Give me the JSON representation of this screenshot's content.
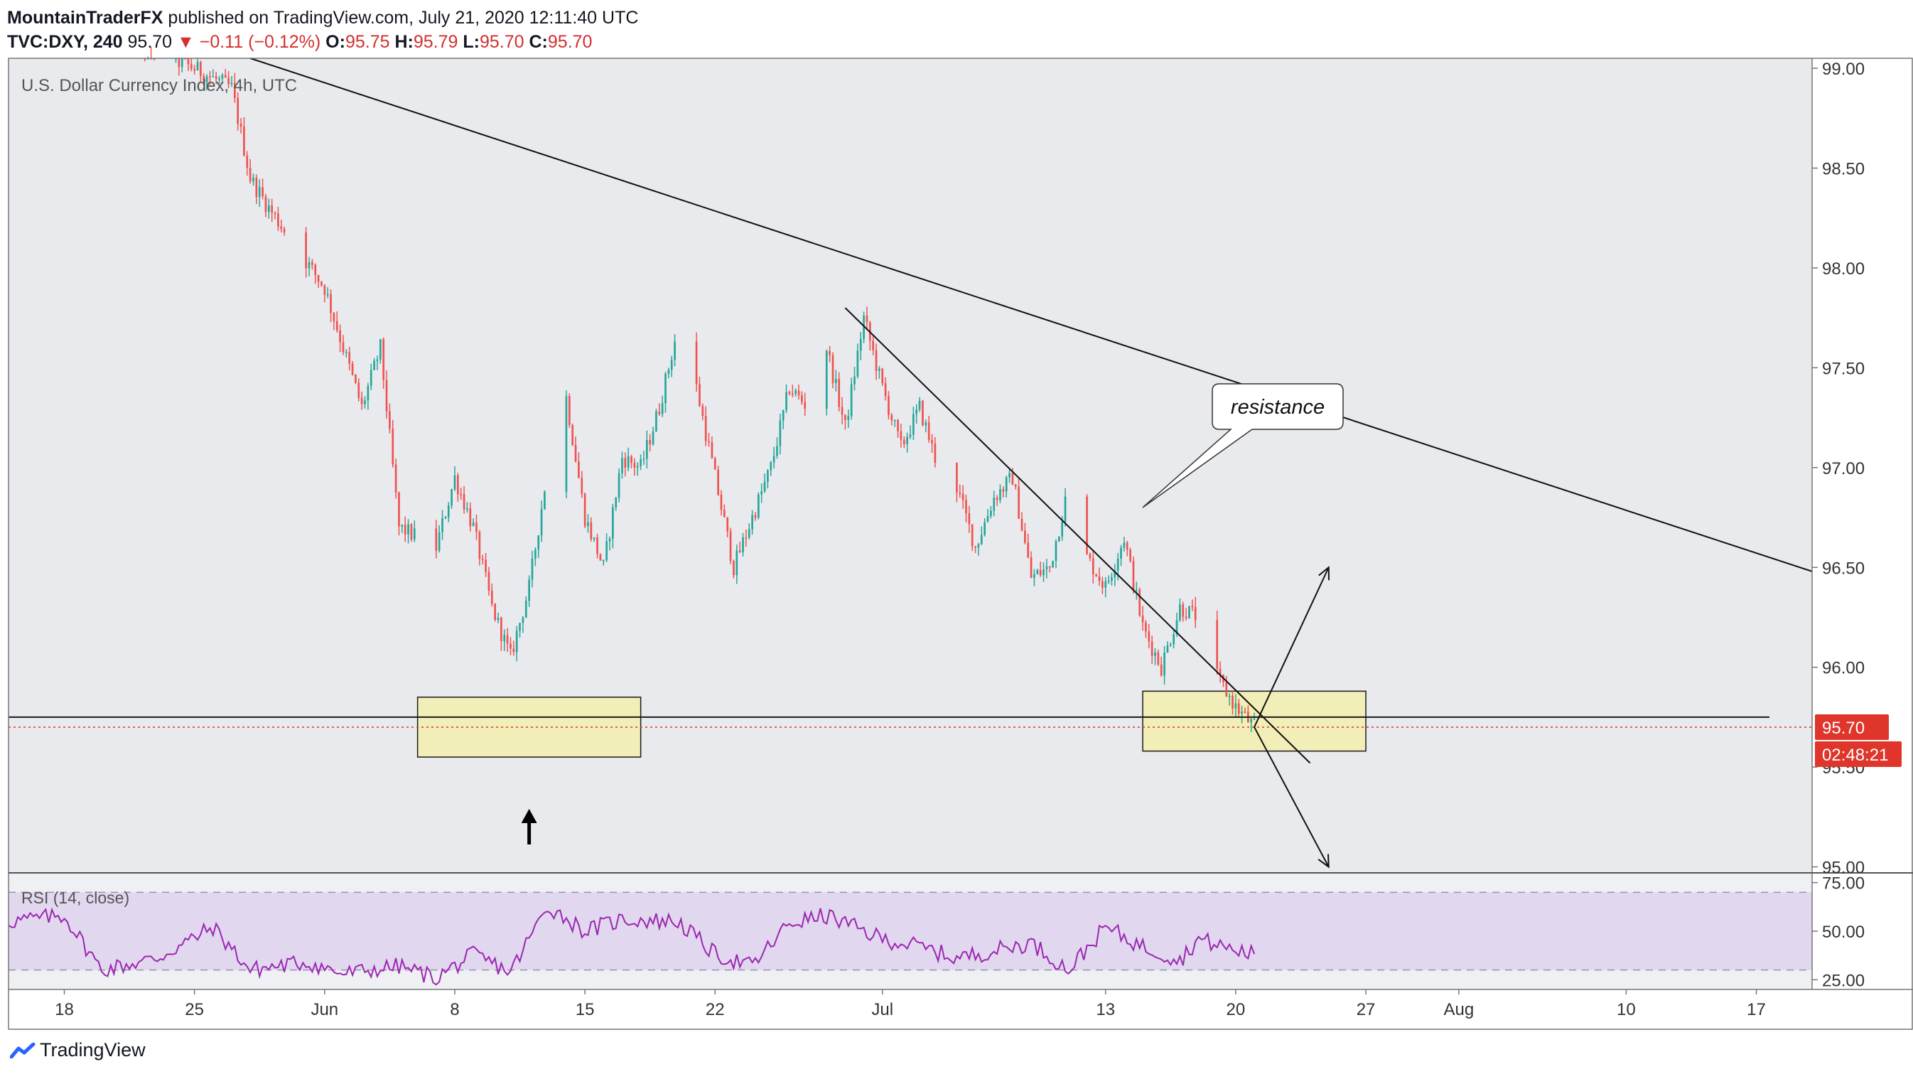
{
  "header": {
    "author": "MountainTraderFX",
    "published": "published on TradingView.com, July 21, 2020 12:11:40 UTC"
  },
  "ohlc": {
    "symbol": "TVC:DXY, 240",
    "last": "95.70",
    "change": "▼ −0.11 (−0.12%)",
    "o_label": "O:",
    "o": "95.75",
    "h_label": "H:",
    "h": "95.79",
    "l_label": "L:",
    "l": "95.70",
    "c_label": "C:",
    "c": "95.70"
  },
  "legend": "U.S. Dollar Currency Index, 4h, UTC",
  "annotation": "resistance",
  "price_tag": "95.70",
  "countdown": "02:48:21",
  "rsi_label": "RSI (14, close)",
  "footer": "TradingView",
  "colors": {
    "up": "#26a69a",
    "down": "#ef5350",
    "background": "#e9eaee",
    "rsi_band": "#e1d7ef",
    "rsi_line": "#9c27b0",
    "zone_fill": "#f3eeb0",
    "price_tag": "#e0352b"
  },
  "chart_data": [
    {
      "type": "candlestick",
      "y_axis_ticks": [
        "99.00",
        "98.50",
        "98.00",
        "97.50",
        "97.00",
        "96.50",
        "96.00",
        "95.50",
        "95.00"
      ],
      "x_axis_ticks": [
        "18",
        "25",
        "Jun",
        "8",
        "15",
        "22",
        "Jul",
        "13",
        "20",
        "27",
        "Aug",
        "10",
        "17"
      ],
      "ylim": [
        94.97,
        99.05
      ],
      "xlim": [
        "2020-05-15",
        "2020-08-20"
      ],
      "close_path": [
        [
          "2020-05-21",
          99.15
        ],
        [
          "2020-05-25",
          99.0
        ],
        [
          "2020-05-27",
          98.9
        ],
        [
          "2020-05-28",
          98.45
        ],
        [
          "2020-05-29",
          98.3
        ],
        [
          "2020-06-01",
          97.9
        ],
        [
          "2020-06-02",
          97.6
        ],
        [
          "2020-06-03",
          97.3
        ],
        [
          "2020-06-04",
          97.6
        ],
        [
          "2020-06-05",
          96.7
        ],
        [
          "2020-06-07",
          96.6
        ],
        [
          "2020-06-08",
          96.95
        ],
        [
          "2020-06-09",
          96.7
        ],
        [
          "2020-06-10",
          96.3
        ],
        [
          "2020-06-11",
          96.05
        ],
        [
          "2020-06-12",
          96.4
        ],
        [
          "2020-06-13",
          97.0
        ],
        [
          "2020-06-14",
          97.35
        ],
        [
          "2020-06-15",
          96.75
        ],
        [
          "2020-06-16",
          96.5
        ],
        [
          "2020-06-17",
          97.05
        ],
        [
          "2020-06-18",
          97.0
        ],
        [
          "2020-06-19",
          97.3
        ],
        [
          "2020-06-20",
          97.7
        ],
        [
          "2020-06-21",
          97.4
        ],
        [
          "2020-06-22",
          96.95
        ],
        [
          "2020-06-23",
          96.5
        ],
        [
          "2020-06-24",
          96.75
        ],
        [
          "2020-06-25",
          97.0
        ],
        [
          "2020-06-26",
          97.4
        ],
        [
          "2020-06-27",
          97.3
        ],
        [
          "2020-06-28",
          97.6
        ],
        [
          "2020-06-29",
          97.2
        ],
        [
          "2020-06-30",
          97.75
        ],
        [
          "2020-07-01",
          97.4
        ],
        [
          "2020-07-02",
          97.1
        ],
        [
          "2020-07-03",
          97.3
        ],
        [
          "2020-07-04",
          97.0
        ],
        [
          "2020-07-05",
          96.9
        ],
        [
          "2020-07-06",
          96.6
        ],
        [
          "2020-07-07",
          96.85
        ],
        [
          "2020-07-08",
          96.95
        ],
        [
          "2020-07-09",
          96.45
        ],
        [
          "2020-07-10",
          96.5
        ],
        [
          "2020-07-11",
          96.9
        ],
        [
          "2020-07-12",
          96.55
        ],
        [
          "2020-07-13",
          96.4
        ],
        [
          "2020-07-14",
          96.65
        ],
        [
          "2020-07-15",
          96.2
        ],
        [
          "2020-07-16",
          96.0
        ],
        [
          "2020-07-17",
          96.3
        ],
        [
          "2020-07-18",
          96.25
        ],
        [
          "2020-07-19",
          95.95
        ],
        [
          "2020-07-20",
          95.8
        ],
        [
          "2020-07-21",
          95.7
        ]
      ],
      "support_line": 95.75,
      "last_price": 95.7,
      "zones": [
        {
          "x": [
            "2020-06-06",
            "2020-06-18"
          ],
          "y": [
            95.55,
            95.85
          ]
        },
        {
          "x": [
            "2020-07-15",
            "2020-07-27"
          ],
          "y": [
            95.58,
            95.88
          ]
        }
      ],
      "trendlines": [
        {
          "from": [
            "2020-05-28",
            99.05
          ],
          "to": [
            "2020-08-20",
            96.48
          ]
        },
        {
          "from": [
            "2020-06-29",
            97.8
          ],
          "to": [
            "2020-07-24",
            95.52
          ]
        }
      ],
      "arrows": [
        {
          "from": [
            "2020-07-21",
            95.7
          ],
          "to": [
            "2020-07-25",
            96.5
          ]
        },
        {
          "from": [
            "2020-07-21",
            95.7
          ],
          "to": [
            "2020-07-25",
            95.0
          ]
        }
      ],
      "callout_pointer": [
        "2020-07-15",
        96.8
      ],
      "marker_arrow_at": "2020-06-12"
    },
    {
      "type": "line",
      "name": "RSI (14, close)",
      "y_axis_ticks": [
        "75.00",
        "50.00",
        "25.00"
      ],
      "ylim": [
        20,
        80
      ],
      "bands": [
        30,
        70
      ],
      "values_path": [
        [
          "2020-05-15",
          55
        ],
        [
          "2020-05-18",
          58
        ],
        [
          "2020-05-20",
          30
        ],
        [
          "2020-05-23",
          36
        ],
        [
          "2020-05-26",
          52
        ],
        [
          "2020-05-28",
          30
        ],
        [
          "2020-05-31",
          34
        ],
        [
          "2020-06-02",
          28
        ],
        [
          "2020-06-05",
          32
        ],
        [
          "2020-06-07",
          26
        ],
        [
          "2020-06-09",
          38
        ],
        [
          "2020-06-11",
          29
        ],
        [
          "2020-06-13",
          63
        ],
        [
          "2020-06-15",
          50
        ],
        [
          "2020-06-17",
          56
        ],
        [
          "2020-06-20",
          55
        ],
        [
          "2020-06-22",
          38
        ],
        [
          "2020-06-24",
          32
        ],
        [
          "2020-06-26",
          54
        ],
        [
          "2020-06-28",
          58
        ],
        [
          "2020-07-01",
          46
        ],
        [
          "2020-07-03",
          42
        ],
        [
          "2020-07-05",
          36
        ],
        [
          "2020-07-07",
          40
        ],
        [
          "2020-07-09",
          44
        ],
        [
          "2020-07-11",
          30
        ],
        [
          "2020-07-13",
          52
        ],
        [
          "2020-07-15",
          42
        ],
        [
          "2020-07-17",
          35
        ],
        [
          "2020-07-18",
          46
        ],
        [
          "2020-07-20",
          40
        ],
        [
          "2020-07-21",
          38
        ]
      ]
    }
  ]
}
